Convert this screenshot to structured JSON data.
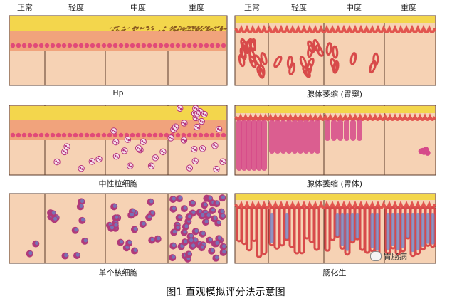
{
  "grades": [
    "正常",
    "轻度",
    "中度",
    "重度"
  ],
  "panels": {
    "hp": "Hp",
    "neutrophil": "中性粒细胞",
    "mononuclear": "单个核细胞",
    "atrophy_antrum": "腺体萎缩 (胃窦)",
    "atrophy_body": "腺体萎缩 (胃体)",
    "metaplasia": "肠化生"
  },
  "figure_caption": "图1  直观模拟评分法示意图",
  "watermark": "胃肠病",
  "colors": {
    "tissue": "#f6d2b4",
    "yellow_band": "#f3d64c",
    "orange_band": "#f1a37c",
    "nuclei": "#e14a78",
    "purple": "#8b3fa3",
    "blue": "#6c7fc4"
  }
}
